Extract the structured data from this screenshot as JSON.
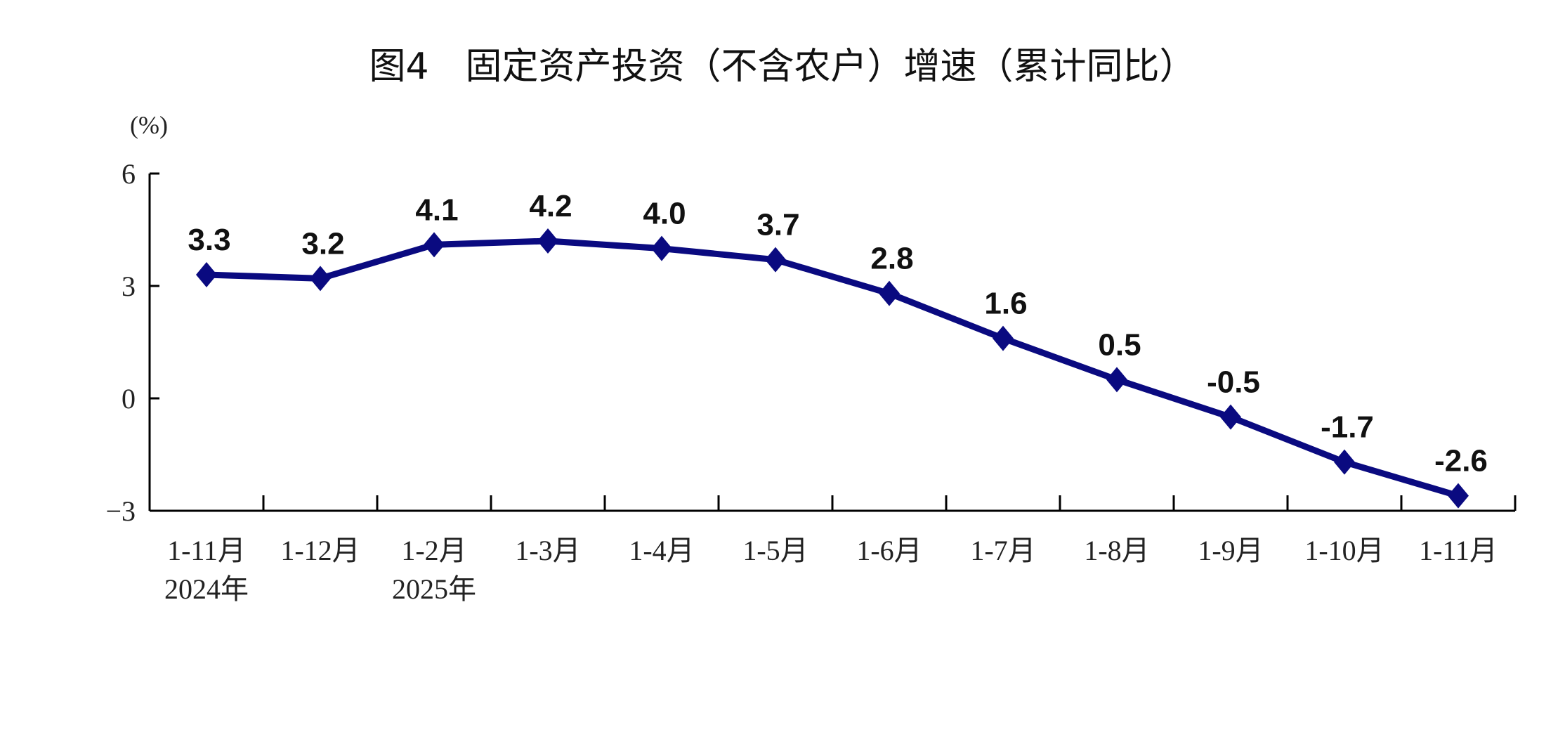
{
  "chart_data": {
    "type": "line",
    "title": "图4　固定资产投资（不含农户）增速（累计同比）",
    "ylabel": "(%)",
    "xlabel": "",
    "categories": [
      "1-11月",
      "1-12月",
      "1-2月",
      "1-3月",
      "1-4月",
      "1-5月",
      "1-6月",
      "1-7月",
      "1-8月",
      "1-9月",
      "1-10月",
      "1-11月"
    ],
    "category_sublabels": [
      "2024年",
      "",
      "2025年",
      "",
      "",
      "",
      "",
      "",
      "",
      "",
      "",
      ""
    ],
    "values": [
      3.3,
      3.2,
      4.1,
      4.2,
      4.0,
      3.7,
      2.8,
      1.6,
      0.5,
      -0.5,
      -1.7,
      -2.6
    ],
    "data_labels": [
      "3.3",
      "3.2",
      "4.1",
      "4.2",
      "4.0",
      "3.7",
      "2.8",
      "1.6",
      "0.5",
      "-0.5",
      "-1.7",
      "-2.6"
    ],
    "ylim": [
      -3,
      6
    ],
    "yticks": [
      6,
      3,
      0,
      -3
    ],
    "ytick_labels": [
      "6",
      "3",
      "0",
      "−3"
    ],
    "grid": false,
    "marker": "diamond",
    "line_color": "#0a0a80"
  }
}
